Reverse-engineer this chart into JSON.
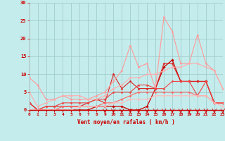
{
  "xlabel": "Vent moyen/en rafales ( km/h )",
  "xlim": [
    0,
    23
  ],
  "ylim": [
    0,
    30
  ],
  "yticks": [
    0,
    5,
    10,
    15,
    20,
    25,
    30
  ],
  "xticks": [
    0,
    1,
    2,
    3,
    4,
    5,
    6,
    7,
    8,
    9,
    10,
    11,
    12,
    13,
    14,
    15,
    16,
    17,
    18,
    19,
    20,
    21,
    22,
    23
  ],
  "bg_color": "#c5ecec",
  "grid_color": "#a0cccc",
  "series": [
    {
      "x": [
        0,
        1,
        2,
        3,
        4,
        5,
        6,
        7,
        8,
        9,
        10,
        11,
        12,
        13,
        14,
        15,
        16,
        17,
        18,
        19,
        20,
        21,
        22,
        23
      ],
      "y": [
        2,
        0,
        0,
        0,
        0,
        0,
        0,
        0,
        1,
        1,
        1,
        1,
        0,
        0,
        1,
        6,
        12,
        14,
        8,
        8,
        8,
        8,
        2,
        2
      ],
      "color": "#cc0000",
      "linewidth": 0.9,
      "marker": "D",
      "markersize": 1.8
    },
    {
      "x": [
        0,
        1,
        2,
        3,
        4,
        5,
        6,
        7,
        8,
        9,
        10,
        11,
        12,
        13,
        14,
        15,
        16,
        17,
        18,
        19,
        20,
        21,
        22,
        23
      ],
      "y": [
        2,
        0,
        1,
        1,
        1,
        1,
        1,
        2,
        3,
        2,
        10,
        6,
        8,
        6,
        6,
        6,
        13,
        13,
        8,
        8,
        8,
        8,
        2,
        2
      ],
      "color": "#dd2222",
      "linewidth": 0.8,
      "marker": "D",
      "markersize": 1.5
    },
    {
      "x": [
        0,
        1,
        2,
        3,
        4,
        5,
        6,
        7,
        8,
        9,
        10,
        11,
        12,
        13,
        14,
        15,
        16,
        17,
        18,
        19,
        20,
        21,
        22,
        23
      ],
      "y": [
        9,
        7,
        3,
        3,
        4,
        3,
        3,
        3,
        4,
        5,
        8,
        11,
        18,
        12,
        13,
        6,
        26,
        22,
        13,
        13,
        21,
        13,
        11,
        6
      ],
      "color": "#ff9999",
      "linewidth": 0.8,
      "marker": "D",
      "markersize": 1.5
    },
    {
      "x": [
        0,
        1,
        2,
        3,
        4,
        5,
        6,
        7,
        8,
        9,
        10,
        11,
        12,
        13,
        14,
        15,
        16,
        17,
        18,
        19,
        20,
        21,
        22,
        23
      ],
      "y": [
        2,
        0,
        1,
        1,
        2,
        2,
        2,
        2,
        3,
        3,
        5,
        5,
        5,
        7,
        7,
        6,
        6,
        8,
        8,
        8,
        4,
        8,
        2,
        2
      ],
      "color": "#ee4444",
      "linewidth": 0.8,
      "marker": "D",
      "markersize": 1.5
    },
    {
      "x": [
        0,
        1,
        2,
        3,
        4,
        5,
        6,
        7,
        8,
        9,
        10,
        11,
        12,
        13,
        14,
        15,
        16,
        17,
        18,
        19,
        20,
        21,
        22,
        23
      ],
      "y": [
        5,
        1,
        2,
        3,
        4,
        4,
        4,
        3,
        3,
        4,
        6,
        7,
        9,
        9,
        10,
        10,
        11,
        12,
        12,
        13,
        13,
        12,
        11,
        6
      ],
      "color": "#ffaaaa",
      "linewidth": 0.8,
      "marker": "D",
      "markersize": 1.5
    },
    {
      "x": [
        0,
        1,
        2,
        3,
        4,
        5,
        6,
        7,
        8,
        9,
        10,
        11,
        12,
        13,
        14,
        15,
        16,
        17,
        18,
        19,
        20,
        21,
        22,
        23
      ],
      "y": [
        0,
        0,
        0,
        0,
        1,
        1,
        1,
        1,
        1,
        2,
        2,
        3,
        4,
        5,
        5,
        5,
        5,
        5,
        5,
        5,
        4,
        4,
        2,
        2
      ],
      "color": "#ff6666",
      "linewidth": 0.8,
      "marker": "D",
      "markersize": 1.5
    },
    {
      "x": [
        0,
        1,
        2,
        3,
        4,
        5,
        6,
        7,
        8,
        9,
        10,
        11,
        12,
        13,
        14,
        15,
        16,
        17,
        18,
        19,
        20,
        21,
        22,
        23
      ],
      "y": [
        0,
        0,
        0,
        0,
        0,
        0,
        1,
        1,
        1,
        1,
        2,
        2,
        3,
        3,
        3,
        4,
        4,
        4,
        4,
        4,
        4,
        4,
        2,
        1
      ],
      "color": "#ffbbbb",
      "linewidth": 0.8,
      "marker": "D",
      "markersize": 1.5
    }
  ]
}
